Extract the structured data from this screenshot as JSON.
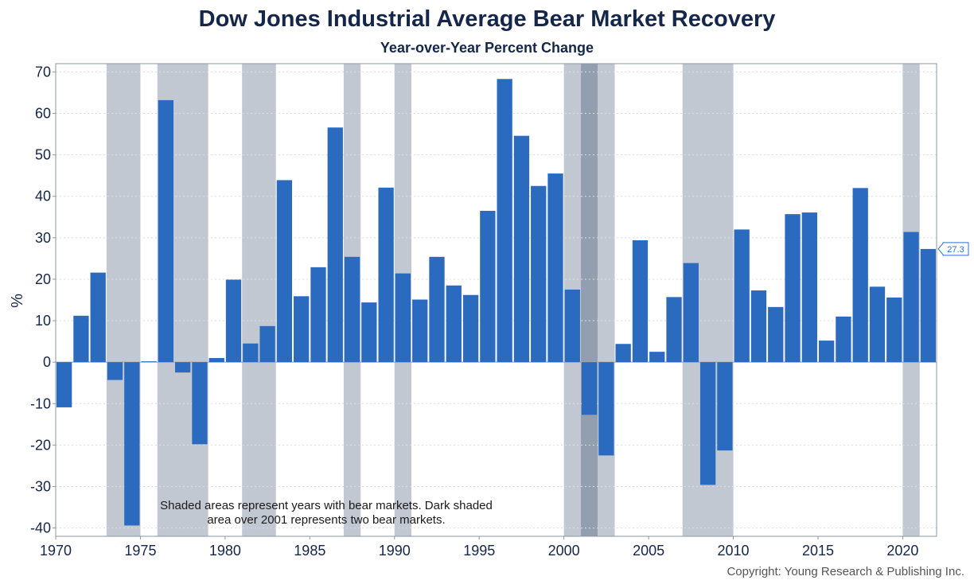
{
  "chart_data": {
    "type": "bar",
    "title": "Dow Jones Industrial Average Bear Market Recovery",
    "subtitle": "Year-over-Year Percent Change",
    "ylabel": "%",
    "ylim": [
      -42,
      72
    ],
    "xlim": [
      1970,
      2022
    ],
    "yticks": [
      70,
      60,
      50,
      40,
      30,
      20,
      10,
      0,
      -10,
      -20,
      -30,
      -40
    ],
    "xticks": [
      1970,
      1975,
      1980,
      1985,
      1990,
      1995,
      2000,
      2005,
      2010,
      2015,
      2020
    ],
    "bar_color": "#2a6bc0",
    "shade_color": "#c2c8d2",
    "dark_shade_color": "#939faf",
    "grid": true,
    "series": [
      {
        "x": [
          1970,
          1971,
          1972,
          1973,
          1974,
          1975,
          1976,
          1977,
          1978,
          1979,
          1980,
          1981,
          1982,
          1983,
          1984,
          1985,
          1986,
          1987,
          1988,
          1989,
          1990,
          1991,
          1992,
          1993,
          1994,
          1995,
          1996,
          1997,
          1998,
          1999,
          2000,
          2001,
          2002,
          2003,
          2004,
          2005,
          2006,
          2007,
          2008,
          2009,
          2010,
          2011,
          2012,
          2013,
          2014,
          2015,
          2016,
          2017,
          2018,
          2019,
          2020,
          2021
        ],
        "values": [
          -10.9,
          11.2,
          21.6,
          -4.3,
          -39.4,
          0.2,
          63.2,
          -2.5,
          -19.8,
          1.0,
          19.9,
          4.5,
          8.7,
          43.9,
          15.9,
          22.9,
          56.6,
          25.4,
          14.4,
          42.1,
          21.4,
          15.1,
          25.4,
          18.5,
          16.2,
          36.5,
          68.3,
          54.6,
          42.5,
          45.5,
          17.5,
          -12.7,
          -22.5,
          4.4,
          29.4,
          2.5,
          15.7,
          23.9,
          -29.6,
          -21.3,
          32.0,
          17.3,
          13.3,
          35.7,
          36.1,
          5.2,
          11.0,
          42.0,
          18.2,
          15.6,
          31.4,
          27.3
        ]
      }
    ],
    "bear_market_shading": [
      {
        "start": 1973,
        "end": 1975
      },
      {
        "start": 1976,
        "end": 1979
      },
      {
        "start": 1981,
        "end": 1983
      },
      {
        "start": 1987,
        "end": 1988
      },
      {
        "start": 1990,
        "end": 1991
      },
      {
        "start": 2000,
        "end": 2001
      },
      {
        "start": 2001,
        "end": 2002,
        "dark": true
      },
      {
        "start": 2002,
        "end": 2003
      },
      {
        "start": 2007,
        "end": 2010
      },
      {
        "start": 2020,
        "end": 2021
      }
    ],
    "last_value_label": "27.3",
    "annotation": [
      "Shaded areas represent years with bear markets. Dark shaded",
      "area over 2001 represents two bear markets."
    ]
  },
  "footer": {
    "copyright": "Copyright: Young Research & Publishing Inc."
  }
}
